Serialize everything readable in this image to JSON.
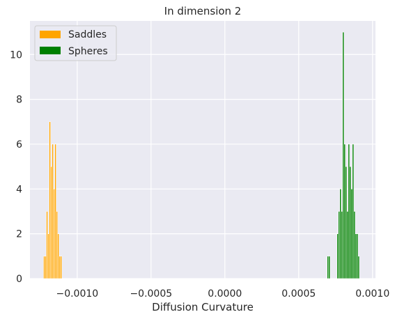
{
  "chart_data": {
    "type": "histogram",
    "title": "In dimension 2",
    "xlabel": "Diffusion Curvature",
    "ylabel": "",
    "xlim": [
      -0.00132,
      0.00102
    ],
    "ylim": [
      0,
      11.5
    ],
    "x_ticks": [
      -0.001,
      -0.0005,
      0.0,
      0.0005,
      0.001
    ],
    "x_tick_labels": [
      "−0.0010",
      "−0.0005",
      "0.0000",
      "0.0005",
      "0.0010"
    ],
    "y_ticks": [
      0,
      2,
      4,
      6,
      8,
      10
    ],
    "y_tick_labels": [
      "0",
      "2",
      "4",
      "6",
      "8",
      "10"
    ],
    "grid": true,
    "legend_position": "top-left",
    "bin_width": 9.5e-06,
    "series": [
      {
        "name": "Saddles",
        "color": "#ffa500",
        "bins": [
          {
            "x": -0.001228,
            "count": 1
          },
          {
            "x": -0.0012185,
            "count": 1
          },
          {
            "x": -0.001209,
            "count": 3
          },
          {
            "x": -0.0011995,
            "count": 2
          },
          {
            "x": -0.00119,
            "count": 7
          },
          {
            "x": -0.0011805,
            "count": 5
          },
          {
            "x": -0.001171,
            "count": 6
          },
          {
            "x": -0.0011615,
            "count": 4
          },
          {
            "x": -0.001152,
            "count": 6
          },
          {
            "x": -0.0011425,
            "count": 3
          },
          {
            "x": -0.001133,
            "count": 2
          },
          {
            "x": -0.0011235,
            "count": 1
          },
          {
            "x": -0.001114,
            "count": 1
          }
        ]
      },
      {
        "name": "Spheres",
        "color": "#008000",
        "bins": [
          {
            "x": 0.000693,
            "count": 1
          },
          {
            "x": 0.0007025,
            "count": 1
          },
          {
            "x": 0.000759,
            "count": 2
          },
          {
            "x": 0.0007685,
            "count": 3
          },
          {
            "x": 0.000778,
            "count": 4
          },
          {
            "x": 0.0007875,
            "count": 3
          },
          {
            "x": 0.000797,
            "count": 11
          },
          {
            "x": 0.0008065,
            "count": 6
          },
          {
            "x": 0.000816,
            "count": 5
          },
          {
            "x": 0.0008255,
            "count": 3
          },
          {
            "x": 0.000835,
            "count": 6
          },
          {
            "x": 0.0008445,
            "count": 5
          },
          {
            "x": 0.000854,
            "count": 4
          },
          {
            "x": 0.0008635,
            "count": 6
          },
          {
            "x": 0.000873,
            "count": 3
          },
          {
            "x": 0.0008825,
            "count": 2
          },
          {
            "x": 0.000892,
            "count": 2
          },
          {
            "x": 0.0009015,
            "count": 1
          }
        ]
      }
    ]
  }
}
